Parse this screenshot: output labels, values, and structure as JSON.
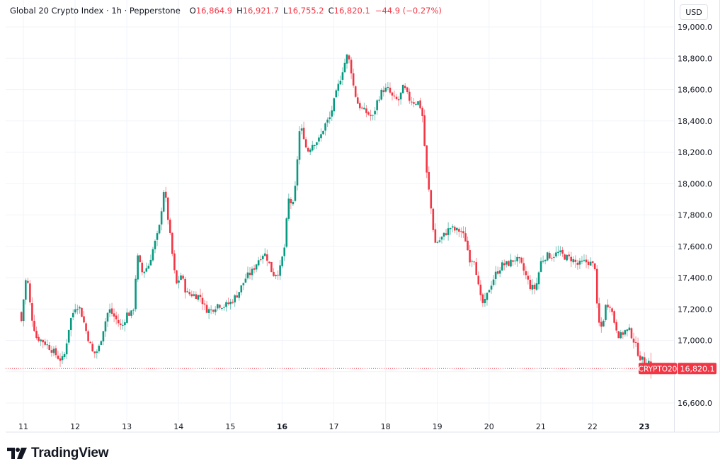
{
  "legend": {
    "title": "Global 20 Crypto Index · 1h · Pepperstone",
    "open_label": "O",
    "open": "16,864.9",
    "high_label": "H",
    "high": "16,921.7",
    "low_label": "L",
    "low": "16,755.2",
    "close_label": "C",
    "close": "16,820.1",
    "change": "−44.9 (−0.27%)"
  },
  "currency": "USD",
  "price_label": {
    "symbol": "CRYPTO20",
    "value": "16,820.1",
    "color": "#f23645"
  },
  "branding": {
    "name": "TradingView"
  },
  "colors": {
    "up": "#089981",
    "down": "#f23645",
    "grid": "#f0f3fa",
    "axis_text": "#131722"
  },
  "chart_data": {
    "type": "candlestick",
    "title": "Global 20 Crypto Index · 1h · Pepperstone",
    "xlabel": "",
    "ylabel": "USD",
    "ylim": [
      16480,
      19060
    ],
    "y_ticks": [
      "19,000.0",
      "18,800.0",
      "18,600.0",
      "18,400.0",
      "18,200.0",
      "18,000.0",
      "17,800.0",
      "17,600.0",
      "17,400.0",
      "17,200.0",
      "17,000.0",
      "16,600.0"
    ],
    "y_tick_values": [
      19000,
      18800,
      18600,
      18400,
      18200,
      18000,
      17800,
      17600,
      17400,
      17200,
      17000,
      16600
    ],
    "x_ticks": [
      "11",
      "12",
      "13",
      "14",
      "15",
      "16",
      "17",
      "18",
      "19",
      "20",
      "21",
      "22",
      "23"
    ],
    "x_tick_bold": [
      "16",
      "23"
    ],
    "interval": "1h",
    "last_close": 16820.1,
    "close_path_waypoints": [
      {
        "day": 10.92,
        "price": 17180
      },
      {
        "day": 10.98,
        "price": 17100
      },
      {
        "day": 11.02,
        "price": 17380
      },
      {
        "day": 11.08,
        "price": 17380
      },
      {
        "day": 11.15,
        "price": 17170
      },
      {
        "day": 11.25,
        "price": 17020
      },
      {
        "day": 11.4,
        "price": 16990
      },
      {
        "day": 11.55,
        "price": 16940
      },
      {
        "day": 11.7,
        "price": 16880
      },
      {
        "day": 11.78,
        "price": 16880
      },
      {
        "day": 11.9,
        "price": 17120
      },
      {
        "day": 12.02,
        "price": 17230
      },
      {
        "day": 12.1,
        "price": 17200
      },
      {
        "day": 12.22,
        "price": 17050
      },
      {
        "day": 12.35,
        "price": 16910
      },
      {
        "day": 12.45,
        "price": 16940
      },
      {
        "day": 12.55,
        "price": 17080
      },
      {
        "day": 12.65,
        "price": 17200
      },
      {
        "day": 12.78,
        "price": 17140
      },
      {
        "day": 12.9,
        "price": 17080
      },
      {
        "day": 13.0,
        "price": 17170
      },
      {
        "day": 13.12,
        "price": 17170
      },
      {
        "day": 13.2,
        "price": 17540
      },
      {
        "day": 13.3,
        "price": 17430
      },
      {
        "day": 13.42,
        "price": 17480
      },
      {
        "day": 13.52,
        "price": 17600
      },
      {
        "day": 13.62,
        "price": 17700
      },
      {
        "day": 13.72,
        "price": 17980
      },
      {
        "day": 13.78,
        "price": 17820
      },
      {
        "day": 13.86,
        "price": 17600
      },
      {
        "day": 13.95,
        "price": 17350
      },
      {
        "day": 14.05,
        "price": 17420
      },
      {
        "day": 14.15,
        "price": 17300
      },
      {
        "day": 14.3,
        "price": 17290
      },
      {
        "day": 14.42,
        "price": 17280
      },
      {
        "day": 14.52,
        "price": 17200
      },
      {
        "day": 14.62,
        "price": 17190
      },
      {
        "day": 14.75,
        "price": 17230
      },
      {
        "day": 14.88,
        "price": 17220
      },
      {
        "day": 15.0,
        "price": 17240
      },
      {
        "day": 15.15,
        "price": 17300
      },
      {
        "day": 15.3,
        "price": 17400
      },
      {
        "day": 15.42,
        "price": 17440
      },
      {
        "day": 15.55,
        "price": 17520
      },
      {
        "day": 15.65,
        "price": 17560
      },
      {
        "day": 15.72,
        "price": 17520
      },
      {
        "day": 15.82,
        "price": 17420
      },
      {
        "day": 15.95,
        "price": 17440
      },
      {
        "day": 16.05,
        "price": 17600
      },
      {
        "day": 16.12,
        "price": 17900
      },
      {
        "day": 16.22,
        "price": 17860
      },
      {
        "day": 16.28,
        "price": 18060
      },
      {
        "day": 16.32,
        "price": 18330
      },
      {
        "day": 16.4,
        "price": 18340
      },
      {
        "day": 16.48,
        "price": 18200
      },
      {
        "day": 16.6,
        "price": 18260
      },
      {
        "day": 16.72,
        "price": 18280
      },
      {
        "day": 16.82,
        "price": 18370
      },
      {
        "day": 16.92,
        "price": 18420
      },
      {
        "day": 17.0,
        "price": 18520
      },
      {
        "day": 17.1,
        "price": 18640
      },
      {
        "day": 17.18,
        "price": 18740
      },
      {
        "day": 17.26,
        "price": 18820
      },
      {
        "day": 17.32,
        "price": 18760
      },
      {
        "day": 17.38,
        "price": 18620
      },
      {
        "day": 17.45,
        "price": 18520
      },
      {
        "day": 17.55,
        "price": 18470
      },
      {
        "day": 17.65,
        "price": 18450
      },
      {
        "day": 17.75,
        "price": 18420
      },
      {
        "day": 17.85,
        "price": 18540
      },
      {
        "day": 17.95,
        "price": 18600
      },
      {
        "day": 18.05,
        "price": 18600
      },
      {
        "day": 18.15,
        "price": 18540
      },
      {
        "day": 18.25,
        "price": 18530
      },
      {
        "day": 18.35,
        "price": 18620
      },
      {
        "day": 18.45,
        "price": 18540
      },
      {
        "day": 18.55,
        "price": 18520
      },
      {
        "day": 18.65,
        "price": 18520
      },
      {
        "day": 18.72,
        "price": 18420
      },
      {
        "day": 18.78,
        "price": 18100
      },
      {
        "day": 18.85,
        "price": 17920
      },
      {
        "day": 18.9,
        "price": 17780
      },
      {
        "day": 18.95,
        "price": 17620
      },
      {
        "day": 19.05,
        "price": 17640
      },
      {
        "day": 19.15,
        "price": 17680
      },
      {
        "day": 19.25,
        "price": 17720
      },
      {
        "day": 19.35,
        "price": 17700
      },
      {
        "day": 19.45,
        "price": 17700
      },
      {
        "day": 19.55,
        "price": 17640
      },
      {
        "day": 19.62,
        "price": 17520
      },
      {
        "day": 19.72,
        "price": 17520
      },
      {
        "day": 19.82,
        "price": 17280
      },
      {
        "day": 19.9,
        "price": 17220
      },
      {
        "day": 20.0,
        "price": 17330
      },
      {
        "day": 20.12,
        "price": 17420
      },
      {
        "day": 20.25,
        "price": 17480
      },
      {
        "day": 20.38,
        "price": 17490
      },
      {
        "day": 20.5,
        "price": 17520
      },
      {
        "day": 20.6,
        "price": 17500
      },
      {
        "day": 20.7,
        "price": 17420
      },
      {
        "day": 20.8,
        "price": 17340
      },
      {
        "day": 20.9,
        "price": 17330
      },
      {
        "day": 21.0,
        "price": 17500
      },
      {
        "day": 21.1,
        "price": 17540
      },
      {
        "day": 21.22,
        "price": 17540
      },
      {
        "day": 21.35,
        "price": 17560
      },
      {
        "day": 21.48,
        "price": 17530
      },
      {
        "day": 21.6,
        "price": 17520
      },
      {
        "day": 21.72,
        "price": 17480
      },
      {
        "day": 21.82,
        "price": 17500
      },
      {
        "day": 21.92,
        "price": 17500
      },
      {
        "day": 22.05,
        "price": 17470
      },
      {
        "day": 22.1,
        "price": 17120
      },
      {
        "day": 22.18,
        "price": 17080
      },
      {
        "day": 22.26,
        "price": 17230
      },
      {
        "day": 22.34,
        "price": 17230
      },
      {
        "day": 22.42,
        "price": 17120
      },
      {
        "day": 22.52,
        "price": 17020
      },
      {
        "day": 22.62,
        "price": 17060
      },
      {
        "day": 22.72,
        "price": 17060
      },
      {
        "day": 22.82,
        "price": 16980
      },
      {
        "day": 22.9,
        "price": 16900
      },
      {
        "day": 23.0,
        "price": 16860
      },
      {
        "day": 23.08,
        "price": 16870
      },
      {
        "day": 23.15,
        "price": 16820
      }
    ]
  }
}
